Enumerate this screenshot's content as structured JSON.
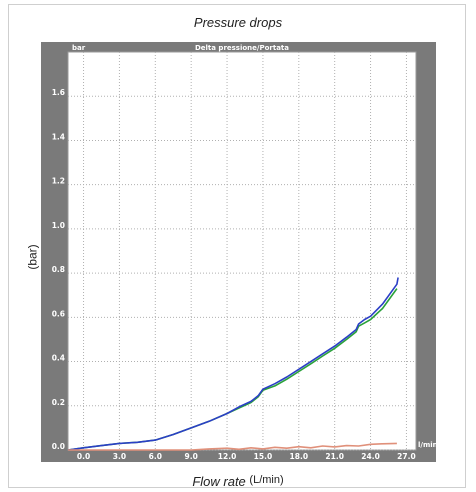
{
  "title": "Pressure drops",
  "y_label": "(bar)",
  "x_label_text": "Flow rate",
  "x_label_unit": "(L/min)",
  "chart_data": {
    "type": "line",
    "inner_title": "Delta pressione/Portata",
    "y_unit": "bar",
    "x_unit": "l/min",
    "xlim": [
      -1.3,
      27.8
    ],
    "ylim": [
      0,
      1.8
    ],
    "x_ticks": [
      "0.0",
      "3.0",
      "6.0",
      "9.0",
      "12.0",
      "15.0",
      "18.0",
      "21.0",
      "24.0",
      "27.0"
    ],
    "x_tick_values": [
      0,
      3,
      6,
      9,
      12,
      15,
      18,
      21,
      24,
      27
    ],
    "y_ticks": [
      "0.0",
      "0.2",
      "0.4",
      "0.6",
      "0.8",
      "1.0",
      "1.2",
      "1.4",
      "1.6"
    ],
    "y_tick_values": [
      0,
      0.2,
      0.4,
      0.6,
      0.8,
      1.0,
      1.2,
      1.4,
      1.6
    ],
    "grid": true,
    "series": [
      {
        "color": "#2aa13a",
        "x": [
          -1.3,
          0,
          1.5,
          3,
          4.5,
          6,
          7.5,
          9,
          10.5,
          12,
          13,
          14,
          14.6,
          15,
          16,
          17,
          18,
          19,
          20,
          21,
          22,
          22.8,
          23,
          23.5,
          24,
          25,
          26.2
        ],
        "y": [
          0.0,
          0.01,
          0.02,
          0.03,
          0.035,
          0.045,
          0.07,
          0.1,
          0.13,
          0.165,
          0.19,
          0.215,
          0.24,
          0.27,
          0.29,
          0.32,
          0.355,
          0.39,
          0.425,
          0.46,
          0.5,
          0.535,
          0.56,
          0.575,
          0.59,
          0.64,
          0.73
        ]
      },
      {
        "color": "#2b3fc6",
        "x": [
          -1.3,
          0,
          1.5,
          3,
          4.5,
          6,
          7.5,
          9,
          10.5,
          12,
          13,
          14,
          14.6,
          15,
          16,
          17,
          18,
          19,
          20,
          21,
          22,
          22.8,
          23,
          23.5,
          24,
          25,
          26.2,
          26.3
        ],
        "y": [
          0.0,
          0.01,
          0.02,
          0.03,
          0.035,
          0.045,
          0.07,
          0.1,
          0.13,
          0.165,
          0.195,
          0.22,
          0.245,
          0.275,
          0.3,
          0.33,
          0.365,
          0.4,
          0.435,
          0.47,
          0.51,
          0.545,
          0.57,
          0.59,
          0.605,
          0.66,
          0.75,
          0.78
        ]
      },
      {
        "color": "#e0907a",
        "x": [
          -1.3,
          0,
          3,
          6,
          9,
          10.5,
          12,
          13,
          14,
          15,
          16,
          17,
          18,
          19,
          20,
          21,
          22,
          23,
          24,
          25,
          26.2
        ],
        "y": [
          0.0,
          0.0,
          0.0,
          0.0,
          0.0,
          0.005,
          0.008,
          0.003,
          0.01,
          0.005,
          0.012,
          0.008,
          0.015,
          0.01,
          0.018,
          0.014,
          0.02,
          0.018,
          0.026,
          0.028,
          0.03
        ]
      }
    ]
  }
}
